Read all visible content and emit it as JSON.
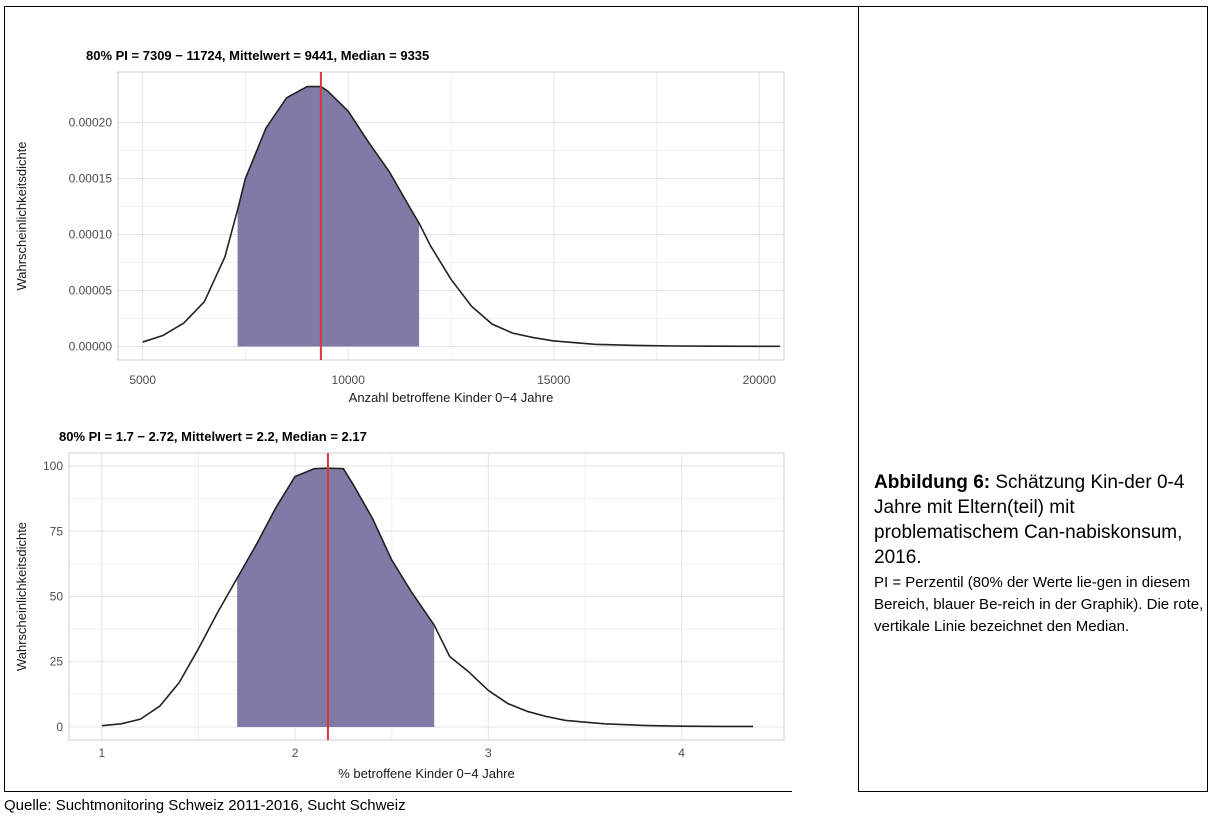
{
  "caption": {
    "label": "Abbildung 6:",
    "text": " Schätzung Kin-der 0-4 Jahre mit Eltern(teil) mit problematischem Can-nabiskonsum, 2016.",
    "note": "PI = Perzentil (80% der Werte lie-gen in diesem Bereich, blauer Be-reich in der Graphik). Die rote, vertikale Linie bezeichnet den Median."
  },
  "source": "Quelle: Suchtmonitoring Schweiz 2011-2016, Sucht Schweiz",
  "colors": {
    "fill": "#7f7aa6",
    "median_line": "#d7373a",
    "curve": "#222222",
    "grid": "#e3e3e3"
  },
  "chart_data": [
    {
      "type": "area",
      "title": "80% PI = 7309 − 11724, Mittelwert = 9441, Median = 9335",
      "xlabel": "Anzahl betroffene Kinder 0−4 Jahre",
      "ylabel": "Wahrscheinlichkeitsdichte",
      "xlim": [
        4400,
        20600
      ],
      "ylim": [
        -1.2e-05,
        0.000245
      ],
      "xticks": [
        5000,
        10000,
        15000,
        20000
      ],
      "xtick_labels": [
        "5000",
        "10000",
        "15000",
        "20000"
      ],
      "yticks": [
        0,
        5e-05,
        0.0001,
        0.00015,
        0.0002
      ],
      "ytick_labels": [
        "0.00000",
        "0.00005",
        "0.00010",
        "0.00015",
        "0.00020"
      ],
      "grid": true,
      "shaded_interval": [
        7309,
        11724
      ],
      "median": 9335,
      "mean": 9441,
      "x": [
        5000,
        5500,
        6000,
        6500,
        7000,
        7309,
        7500,
        8000,
        8500,
        9000,
        9335,
        9500,
        10000,
        10500,
        11000,
        11500,
        11724,
        12000,
        12500,
        13000,
        13500,
        14000,
        14500,
        15000,
        16000,
        17000,
        18000,
        19000,
        20000,
        20500
      ],
      "y": [
        4e-06,
        1e-05,
        2.1e-05,
        4e-05,
        8e-05,
        0.000122,
        0.00015,
        0.000195,
        0.000222,
        0.000232,
        0.000232,
        0.000228,
        0.00021,
        0.000182,
        0.000156,
        0.000124,
        0.00011,
        9e-05,
        6e-05,
        3.6e-05,
        2e-05,
        1.2e-05,
        8e-06,
        5e-06,
        2e-06,
        1e-06,
        5e-07,
        3e-07,
        2e-07,
        2e-07
      ]
    },
    {
      "type": "area",
      "title": "80% PI = 1.7 − 2.72, Mittelwert = 2.2, Median = 2.17",
      "xlabel": "% betroffene Kinder 0−4 Jahre",
      "ylabel": "Wahrscheinlichkeitsdichte",
      "xlim": [
        0.83,
        4.53
      ],
      "ylim": [
        -5,
        105
      ],
      "xticks": [
        1,
        2,
        3,
        4
      ],
      "xtick_labels": [
        "1",
        "2",
        "3",
        "4"
      ],
      "yticks": [
        0,
        25,
        50,
        75,
        100
      ],
      "ytick_labels": [
        "0",
        "25",
        "50",
        "75",
        "100"
      ],
      "grid": true,
      "shaded_interval": [
        1.7,
        2.72
      ],
      "median": 2.17,
      "mean": 2.2,
      "x": [
        1.0,
        1.1,
        1.2,
        1.3,
        1.4,
        1.5,
        1.6,
        1.7,
        1.8,
        1.9,
        2.0,
        2.1,
        2.17,
        2.25,
        2.3,
        2.4,
        2.5,
        2.6,
        2.72,
        2.8,
        2.9,
        3.0,
        3.1,
        3.2,
        3.3,
        3.4,
        3.6,
        3.8,
        4.0,
        4.2,
        4.37
      ],
      "y": [
        0.5,
        1.2,
        3.0,
        8.0,
        17.0,
        30.0,
        44.0,
        57.0,
        70.0,
        84.0,
        96.0,
        99.0,
        99.2,
        99.0,
        93.0,
        80.0,
        64.0,
        52.0,
        39.0,
        27.0,
        21.0,
        14.0,
        9.0,
        6.0,
        4.0,
        2.5,
        1.2,
        0.6,
        0.3,
        0.2,
        0.2
      ]
    }
  ]
}
